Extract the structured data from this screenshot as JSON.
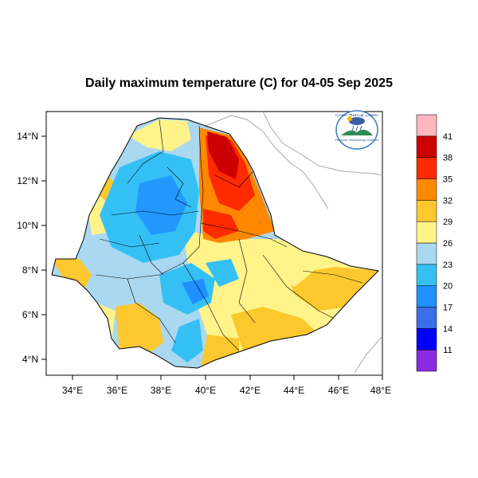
{
  "title": "Daily maximum temperature (C) for 04-05 Sep 2025",
  "axes": {
    "lon_ticks": [
      "34°E",
      "36°E",
      "38°E",
      "40°E",
      "42°E",
      "44°E",
      "46°E",
      "48°E"
    ],
    "lat_ticks": [
      "14°N",
      "12°N",
      "10°N",
      "8°N",
      "6°N",
      "4°N"
    ],
    "lon_values": [
      34,
      36,
      38,
      40,
      42,
      44,
      46,
      48
    ],
    "lat_values": [
      14,
      12,
      10,
      8,
      6,
      4
    ],
    "lon_range": [
      33,
      48.2
    ],
    "lat_range": [
      3.2,
      15
    ]
  },
  "legend": {
    "colors": [
      "#8a2be2",
      "#0000ff",
      "#3a6ee8",
      "#1e90ff",
      "#35c0f5",
      "#aad8f0",
      "#fff38a",
      "#fdc72e",
      "#ff8800",
      "#ff2a00",
      "#cc0000",
      "#ffb6c1"
    ],
    "labels": [
      "11",
      "14",
      "17",
      "20",
      "23",
      "26",
      "29",
      "32",
      "35",
      "38",
      "41"
    ]
  },
  "logo": {
    "text_top": "የኢትዮጵያ ሜቴዎሮሎጂ ኢንስቲትዩት",
    "text_bottom": "Ethiopian Meteorology Institute"
  },
  "colors": {
    "very_hot": "#cc0000",
    "hot": "#ff2a00",
    "warm_orange": "#ff8800",
    "orange": "#fdc72e",
    "yellow": "#fff38a",
    "light_blue": "#aad8f0",
    "cyan": "#35c0f5",
    "blue": "#1e90ff"
  }
}
